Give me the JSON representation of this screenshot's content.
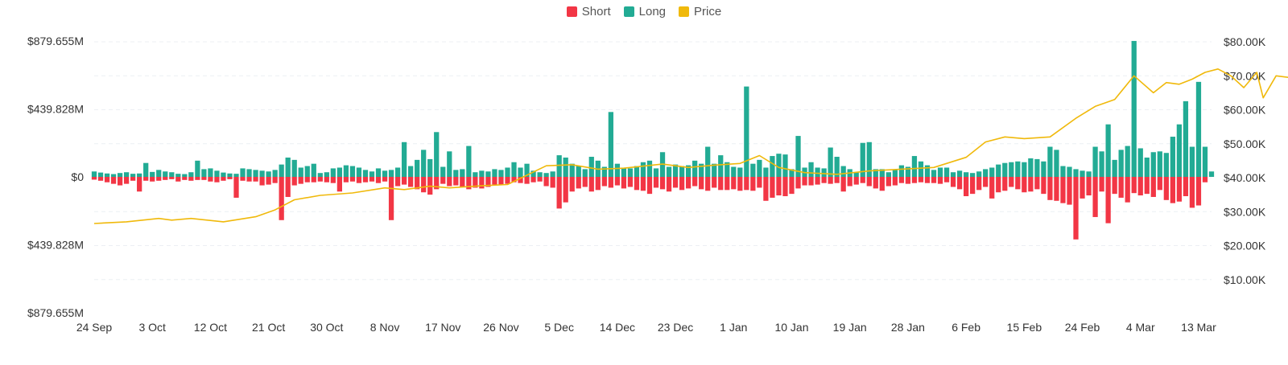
{
  "legend": [
    {
      "label": "Short",
      "color": "#f23645"
    },
    {
      "label": "Long",
      "color": "#22ab94"
    },
    {
      "label": "Price",
      "color": "#f0b90b"
    }
  ],
  "chart_data": {
    "type": "bar",
    "left_axis": {
      "ticks": [
        {
          "value": 879.655,
          "label": "$879.655M"
        },
        {
          "value": 439.828,
          "label": "$439.828M"
        },
        {
          "value": 0,
          "label": "$0"
        },
        {
          "value": -439.828,
          "label": "$439.828M"
        },
        {
          "value": -879.655,
          "label": "$879.655M"
        }
      ],
      "ylim": [
        -879.655,
        879.655
      ]
    },
    "right_axis": {
      "ticks": [
        {
          "value": 80000,
          "label": "$80.00K"
        },
        {
          "value": 70000,
          "label": "$70.00K"
        },
        {
          "value": 60000,
          "label": "$60.00K"
        },
        {
          "value": 50000,
          "label": "$50.00K"
        },
        {
          "value": 40000,
          "label": "$40.00K"
        },
        {
          "value": 30000,
          "label": "$30.00K"
        },
        {
          "value": 20000,
          "label": "$20.00K"
        },
        {
          "value": 10000,
          "label": "$10.00K"
        }
      ],
      "ylim": [
        0,
        80000
      ]
    },
    "x_ticks": [
      {
        "day": 0,
        "label": "24 Sep"
      },
      {
        "day": 9,
        "label": "3 Oct"
      },
      {
        "day": 18,
        "label": "12 Oct"
      },
      {
        "day": 27,
        "label": "21 Oct"
      },
      {
        "day": 36,
        "label": "30 Oct"
      },
      {
        "day": 45,
        "label": "8 Nov"
      },
      {
        "day": 54,
        "label": "17 Nov"
      },
      {
        "day": 63,
        "label": "26 Nov"
      },
      {
        "day": 72,
        "label": "5 Dec"
      },
      {
        "day": 81,
        "label": "14 Dec"
      },
      {
        "day": 90,
        "label": "23 Dec"
      },
      {
        "day": 99,
        "label": "1 Jan"
      },
      {
        "day": 108,
        "label": "10 Jan"
      },
      {
        "day": 117,
        "label": "19 Jan"
      },
      {
        "day": 126,
        "label": "28 Jan"
      },
      {
        "day": 135,
        "label": "6 Feb"
      },
      {
        "day": 144,
        "label": "15 Feb"
      },
      {
        "day": 153,
        "label": "24 Feb"
      },
      {
        "day": 162,
        "label": "4 Mar"
      },
      {
        "day": 171,
        "label": "13 Mar"
      }
    ],
    "series": [
      {
        "name": "Long",
        "values": [
          35,
          28,
          22,
          18,
          25,
          30,
          20,
          22,
          90,
          32,
          45,
          35,
          30,
          20,
          18,
          30,
          105,
          50,
          55,
          40,
          28,
          22,
          20,
          55,
          50,
          45,
          40,
          35,
          45,
          80,
          125,
          110,
          60,
          70,
          85,
          25,
          30,
          55,
          60,
          75,
          70,
          60,
          45,
          35,
          55,
          40,
          45,
          60,
          225,
          70,
          110,
          175,
          115,
          290,
          65,
          165,
          45,
          50,
          200,
          30,
          40,
          35,
          50,
          45,
          60,
          95,
          60,
          85,
          40,
          30,
          25,
          35,
          140,
          125,
          85,
          70,
          50,
          130,
          105,
          65,
          420,
          85,
          60,
          55,
          70,
          95,
          105,
          55,
          160,
          65,
          80,
          70,
          75,
          105,
          85,
          195,
          85,
          140,
          95,
          65,
          60,
          585,
          85,
          110,
          60,
          135,
          150,
          145,
          50,
          265,
          60,
          95,
          60,
          55,
          190,
          130,
          70,
          50,
          30,
          220,
          225,
          50,
          50,
          30,
          45,
          75,
          65,
          135,
          100,
          75,
          45,
          60,
          60,
          30,
          40,
          30,
          25,
          35,
          50,
          60,
          80,
          90,
          95,
          100,
          95,
          120,
          115,
          100,
          195,
          175,
          70,
          65,
          50,
          40,
          35,
          195,
          165,
          340,
          110,
          175,
          200,
          880,
          185,
          125,
          160,
          165,
          155,
          260,
          340,
          490,
          195,
          615,
          195,
          35
        ]
      },
      {
        "name": "Short",
        "values": [
          -18,
          -25,
          -35,
          -45,
          -55,
          -45,
          -25,
          -95,
          -25,
          -30,
          -25,
          -20,
          -15,
          -30,
          -20,
          -25,
          -20,
          -20,
          -30,
          -35,
          -25,
          -15,
          -135,
          -25,
          -30,
          -30,
          -55,
          -50,
          -40,
          -280,
          -130,
          -55,
          -45,
          -35,
          -35,
          -30,
          -35,
          -40,
          -95,
          -35,
          -30,
          -40,
          -35,
          -30,
          -40,
          -30,
          -280,
          -60,
          -50,
          -65,
          -80,
          -100,
          -115,
          -80,
          -45,
          -60,
          -55,
          -65,
          -80,
          -70,
          -75,
          -65,
          -50,
          -50,
          -45,
          -35,
          -40,
          -45,
          -35,
          -30,
          -60,
          -70,
          -205,
          -165,
          -95,
          -75,
          -65,
          -95,
          -85,
          -60,
          -70,
          -55,
          -75,
          -65,
          -85,
          -90,
          -110,
          -70,
          -80,
          -95,
          -70,
          -85,
          -75,
          -60,
          -80,
          -90,
          -70,
          -85,
          -85,
          -80,
          -90,
          -85,
          -90,
          -70,
          -155,
          -135,
          -120,
          -125,
          -110,
          -75,
          -55,
          -55,
          -50,
          -40,
          -45,
          -40,
          -95,
          -60,
          -50,
          -40,
          -60,
          -75,
          -90,
          -60,
          -55,
          -40,
          -45,
          -40,
          -35,
          -40,
          -40,
          -45,
          -35,
          -65,
          -80,
          -125,
          -110,
          -85,
          -65,
          -140,
          -100,
          -90,
          -65,
          -80,
          -100,
          -95,
          -80,
          -110,
          -150,
          -155,
          -170,
          -180,
          -405,
          -140,
          -120,
          -260,
          -95,
          -300,
          -110,
          -135,
          -165,
          -105,
          -120,
          -110,
          -130,
          -85,
          -150,
          -170,
          -160,
          -125,
          -200,
          -185,
          -35
        ]
      },
      {
        "name": "Price",
        "x": [
          0,
          5,
          10,
          12,
          15,
          20,
          25,
          28,
          31,
          35,
          40,
          45,
          48,
          52,
          55,
          60,
          64,
          70,
          74,
          78,
          82,
          88,
          92,
          96,
          100,
          103,
          106,
          110,
          115,
          120,
          125,
          130,
          135,
          138,
          141,
          144,
          148,
          152,
          155,
          158,
          161,
          164,
          166,
          168,
          170,
          172,
          174,
          176,
          178,
          180,
          181,
          183,
          185,
          187,
          189
        ],
        "values": [
          26500,
          27000,
          28000,
          27500,
          28000,
          27000,
          28500,
          30500,
          33500,
          34800,
          35500,
          37000,
          36500,
          37500,
          37000,
          37600,
          38000,
          43500,
          43800,
          42500,
          42800,
          44000,
          43000,
          43700,
          44200,
          46500,
          43000,
          41500,
          41000,
          42000,
          42500,
          43000,
          46000,
          50500,
          52000,
          51500,
          52000,
          57500,
          61000,
          63000,
          70000,
          65000,
          68000,
          67500,
          69000,
          71000,
          72000,
          70000,
          66500,
          71000,
          63500,
          70000,
          69500,
          68000,
          67000
        ]
      }
    ]
  }
}
